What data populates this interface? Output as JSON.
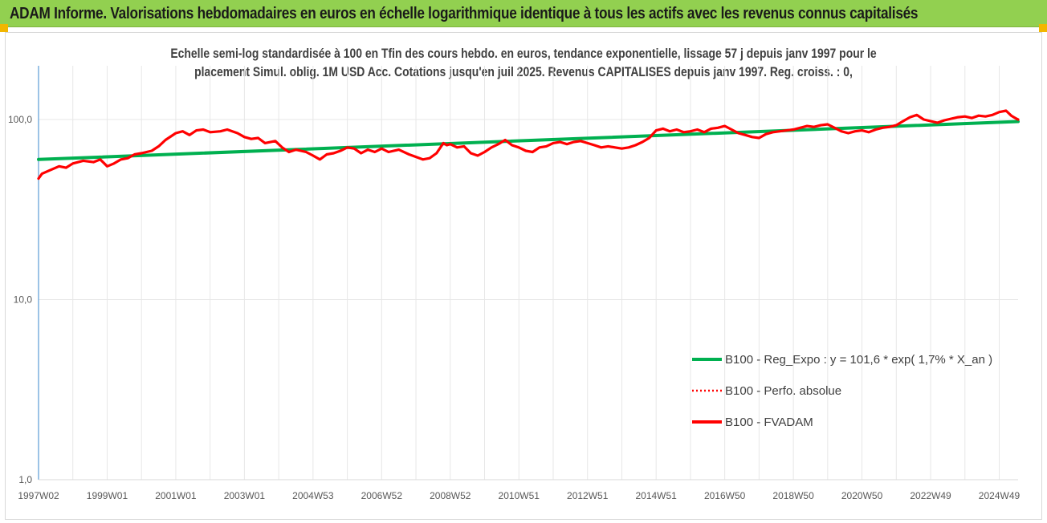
{
  "header": {
    "title": "ADAM Informe. Valorisations hebdomadaires en euros en échelle logarithmique identique à tous les actifs avec les revenus connus capitalisés"
  },
  "colors": {
    "banner": "#92d050",
    "corner": "#f2b600",
    "reg_line": "#00b050",
    "fvadam_line": "#ff0000",
    "perfo_line": "#ff0000",
    "grid": "#e7e7e7",
    "axis": "#5b9bd5"
  },
  "chart_data": {
    "type": "line",
    "title_line1": "Echelle semi-log standardisée à 100 en Tfin des cours hebdo. en euros, tendance exponentielle, lissage 57 j depuis janv 1997 pour le",
    "title_line2": "placement Simul. oblig. 1M USD Acc. Cotations jusqu'en juil 2025. Revenus CAPITALISES depuis janv 1997. Reg. croiss. : 0,",
    "y_scale": "log",
    "ylim": [
      1,
      240
    ],
    "y_ticks": [
      {
        "value": 1,
        "label": "1,0"
      },
      {
        "value": 10,
        "label": "10,0"
      },
      {
        "value": 100,
        "label": "100,0"
      }
    ],
    "xlim": [
      1997.0,
      2025.55
    ],
    "x_ticks": [
      {
        "value": 1997.0,
        "label": "1997W02"
      },
      {
        "value": 1999.0,
        "label": "1999W01"
      },
      {
        "value": 2001.0,
        "label": "2001W01"
      },
      {
        "value": 2003.0,
        "label": "2003W01"
      },
      {
        "value": 2005.0,
        "label": "2004W53"
      },
      {
        "value": 2007.0,
        "label": "2006W52"
      },
      {
        "value": 2009.0,
        "label": "2008W52"
      },
      {
        "value": 2011.0,
        "label": "2010W51"
      },
      {
        "value": 2013.0,
        "label": "2012W51"
      },
      {
        "value": 2015.0,
        "label": "2014W51"
      },
      {
        "value": 2017.0,
        "label": "2016W50"
      },
      {
        "value": 2019.0,
        "label": "2018W50"
      },
      {
        "value": 2021.0,
        "label": "2020W50"
      },
      {
        "value": 2023.0,
        "label": "2022W49"
      },
      {
        "value": 2025.0,
        "label": "2024W49"
      }
    ],
    "grid": "vertical",
    "legend_position": "bottom-right",
    "series": [
      {
        "name": "B100 - Reg_Expo : y = 101,6 * exp( 1,7% *  X_an )",
        "style": "solid-thick",
        "color": "#00b050",
        "points": [
          [
            1997.0,
            60.0
          ],
          [
            2025.55,
            97.5
          ]
        ]
      },
      {
        "name": "B100 - Perfo. absolue",
        "style": "dotted",
        "color": "#ff0000",
        "points": []
      },
      {
        "name": "B100 - FVADAM",
        "style": "solid-thick",
        "color": "#ff0000",
        "points": [
          [
            1997.0,
            47
          ],
          [
            1997.1,
            50
          ],
          [
            1997.3,
            52
          ],
          [
            1997.6,
            55
          ],
          [
            1997.8,
            54
          ],
          [
            1998.0,
            57
          ],
          [
            1998.3,
            59
          ],
          [
            1998.6,
            58
          ],
          [
            1998.8,
            60
          ],
          [
            1999.0,
            55
          ],
          [
            1999.2,
            57
          ],
          [
            1999.4,
            60
          ],
          [
            1999.6,
            61
          ],
          [
            1999.8,
            64
          ],
          [
            2000.0,
            65
          ],
          [
            2000.3,
            67
          ],
          [
            2000.5,
            71
          ],
          [
            2000.7,
            77
          ],
          [
            2001.0,
            84
          ],
          [
            2001.2,
            86
          ],
          [
            2001.4,
            82
          ],
          [
            2001.6,
            87
          ],
          [
            2001.8,
            88
          ],
          [
            2002.0,
            85
          ],
          [
            2002.3,
            86
          ],
          [
            2002.5,
            88
          ],
          [
            2002.8,
            84
          ],
          [
            2003.0,
            80
          ],
          [
            2003.2,
            78
          ],
          [
            2003.4,
            79
          ],
          [
            2003.6,
            74
          ],
          [
            2003.9,
            76
          ],
          [
            2004.1,
            70
          ],
          [
            2004.3,
            66
          ],
          [
            2004.5,
            68
          ],
          [
            2004.8,
            66
          ],
          [
            2005.0,
            63
          ],
          [
            2005.2,
            60
          ],
          [
            2005.4,
            64
          ],
          [
            2005.6,
            65
          ],
          [
            2005.8,
            67
          ],
          [
            2006.0,
            70
          ],
          [
            2006.2,
            69
          ],
          [
            2006.4,
            65
          ],
          [
            2006.6,
            68
          ],
          [
            2006.8,
            66
          ],
          [
            2007.0,
            69
          ],
          [
            2007.2,
            66
          ],
          [
            2007.5,
            68
          ],
          [
            2007.8,
            64
          ],
          [
            2008.0,
            62
          ],
          [
            2008.2,
            60
          ],
          [
            2008.4,
            61
          ],
          [
            2008.6,
            65
          ],
          [
            2008.8,
            74
          ],
          [
            2008.9,
            72
          ],
          [
            2009.0,
            73
          ],
          [
            2009.2,
            70
          ],
          [
            2009.4,
            71
          ],
          [
            2009.6,
            65
          ],
          [
            2009.8,
            63
          ],
          [
            2010.0,
            66
          ],
          [
            2010.2,
            70
          ],
          [
            2010.4,
            73
          ],
          [
            2010.6,
            77
          ],
          [
            2010.8,
            72
          ],
          [
            2011.0,
            70
          ],
          [
            2011.2,
            67
          ],
          [
            2011.4,
            66
          ],
          [
            2011.6,
            70
          ],
          [
            2011.8,
            71
          ],
          [
            2012.0,
            74
          ],
          [
            2012.2,
            75
          ],
          [
            2012.4,
            73
          ],
          [
            2012.6,
            75
          ],
          [
            2012.8,
            76
          ],
          [
            2013.0,
            74
          ],
          [
            2013.2,
            72
          ],
          [
            2013.4,
            70
          ],
          [
            2013.6,
            71
          ],
          [
            2013.8,
            70
          ],
          [
            2014.0,
            69
          ],
          [
            2014.2,
            70
          ],
          [
            2014.4,
            72
          ],
          [
            2014.6,
            75
          ],
          [
            2014.8,
            79
          ],
          [
            2015.0,
            87
          ],
          [
            2015.2,
            89
          ],
          [
            2015.4,
            86
          ],
          [
            2015.6,
            88
          ],
          [
            2015.8,
            85
          ],
          [
            2016.0,
            86
          ],
          [
            2016.2,
            88
          ],
          [
            2016.4,
            85
          ],
          [
            2016.6,
            89
          ],
          [
            2016.8,
            90
          ],
          [
            2017.0,
            92
          ],
          [
            2017.2,
            88
          ],
          [
            2017.4,
            84
          ],
          [
            2017.6,
            82
          ],
          [
            2017.8,
            80
          ],
          [
            2018.0,
            79
          ],
          [
            2018.2,
            83
          ],
          [
            2018.4,
            85
          ],
          [
            2018.6,
            86
          ],
          [
            2018.8,
            87
          ],
          [
            2019.0,
            88
          ],
          [
            2019.2,
            90
          ],
          [
            2019.4,
            92
          ],
          [
            2019.6,
            91
          ],
          [
            2019.8,
            93
          ],
          [
            2020.0,
            94
          ],
          [
            2020.2,
            90
          ],
          [
            2020.4,
            86
          ],
          [
            2020.6,
            84
          ],
          [
            2020.8,
            86
          ],
          [
            2021.0,
            87
          ],
          [
            2021.2,
            85
          ],
          [
            2021.4,
            88
          ],
          [
            2021.6,
            90
          ],
          [
            2021.8,
            91
          ],
          [
            2022.0,
            93
          ],
          [
            2022.2,
            98
          ],
          [
            2022.4,
            103
          ],
          [
            2022.6,
            106
          ],
          [
            2022.8,
            100
          ],
          [
            2023.0,
            98
          ],
          [
            2023.2,
            96
          ],
          [
            2023.4,
            99
          ],
          [
            2023.6,
            101
          ],
          [
            2023.8,
            103
          ],
          [
            2024.0,
            104
          ],
          [
            2024.2,
            102
          ],
          [
            2024.4,
            105
          ],
          [
            2024.6,
            104
          ],
          [
            2024.8,
            106
          ],
          [
            2025.0,
            110
          ],
          [
            2025.2,
            112
          ],
          [
            2025.35,
            105
          ],
          [
            2025.5,
            101
          ],
          [
            2025.55,
            100
          ]
        ]
      }
    ]
  }
}
